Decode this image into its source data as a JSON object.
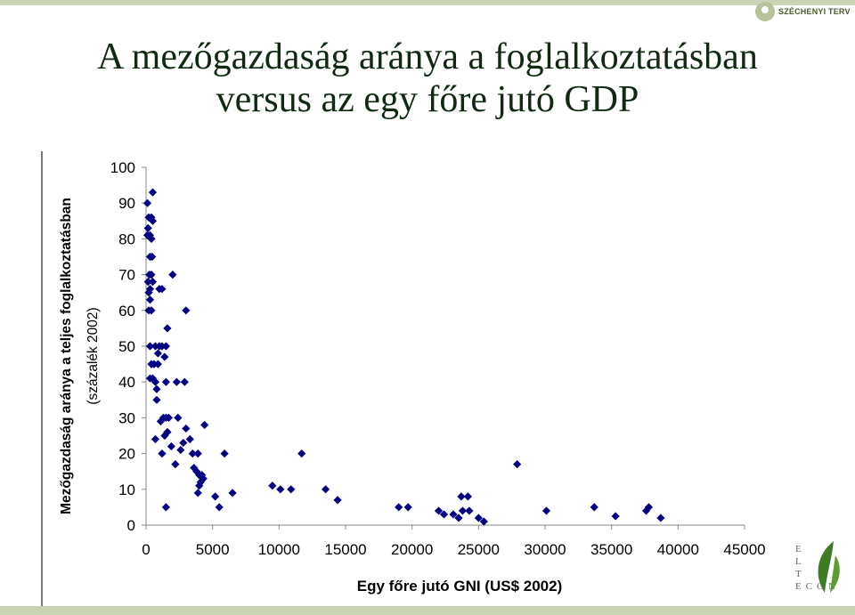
{
  "header": {
    "logo_text": "SZÉCHENYI TERV"
  },
  "title": {
    "line1": "A mezőgazdaság aránya a foglalkoztatásban",
    "line2": "versus az egy főre jutó GDP"
  },
  "footer": {
    "elte_letters": [
      "E",
      "L",
      "T"
    ],
    "econ": "ECON"
  },
  "colors": {
    "marker": "#000080",
    "title": "#0f2a10",
    "band": "#c9d3b5"
  },
  "chart_data": {
    "type": "scatter",
    "title": "",
    "xlabel": "Egy főre jutó GNI (US$ 2002)",
    "ylabel": [
      "Mezőgazdaság aránya a teljes foglalkoztatásban",
      "(százalék 2002)"
    ],
    "xlim": [
      0,
      45000
    ],
    "ylim": [
      0,
      100
    ],
    "xticks": [
      0,
      5000,
      10000,
      15000,
      20000,
      25000,
      30000,
      35000,
      40000,
      45000
    ],
    "yticks": [
      0,
      10,
      20,
      30,
      40,
      50,
      60,
      70,
      80,
      90,
      100
    ],
    "marker": "diamond",
    "grid": false,
    "points": [
      [
        500,
        93
      ],
      [
        100,
        90
      ],
      [
        200,
        86
      ],
      [
        400,
        86
      ],
      [
        500,
        85
      ],
      [
        150,
        83
      ],
      [
        100,
        81
      ],
      [
        300,
        81
      ],
      [
        400,
        80
      ],
      [
        300,
        75
      ],
      [
        450,
        75
      ],
      [
        250,
        70
      ],
      [
        400,
        70
      ],
      [
        2000,
        70
      ],
      [
        150,
        68
      ],
      [
        500,
        68
      ],
      [
        300,
        66
      ],
      [
        200,
        65
      ],
      [
        1000,
        66
      ],
      [
        1200,
        66
      ],
      [
        300,
        63
      ],
      [
        200,
        60
      ],
      [
        400,
        60
      ],
      [
        3000,
        60
      ],
      [
        1600,
        55
      ],
      [
        300,
        50
      ],
      [
        700,
        50
      ],
      [
        1000,
        50
      ],
      [
        1200,
        50
      ],
      [
        1500,
        50
      ],
      [
        900,
        48
      ],
      [
        1400,
        47
      ],
      [
        400,
        45
      ],
      [
        600,
        45
      ],
      [
        900,
        45
      ],
      [
        300,
        41
      ],
      [
        500,
        41
      ],
      [
        700,
        40
      ],
      [
        1500,
        40
      ],
      [
        2300,
        40
      ],
      [
        2900,
        40
      ],
      [
        800,
        38
      ],
      [
        800,
        35
      ],
      [
        1300,
        30
      ],
      [
        1500,
        30
      ],
      [
        1700,
        30
      ],
      [
        2400,
        30
      ],
      [
        1100,
        29
      ],
      [
        4400,
        28
      ],
      [
        3000,
        27
      ],
      [
        1600,
        26
      ],
      [
        1400,
        25
      ],
      [
        700,
        24
      ],
      [
        3300,
        24
      ],
      [
        2800,
        23
      ],
      [
        1900,
        22
      ],
      [
        2600,
        21
      ],
      [
        1200,
        20
      ],
      [
        3500,
        20
      ],
      [
        3900,
        20
      ],
      [
        5900,
        20
      ],
      [
        3600,
        16
      ],
      [
        3800,
        15
      ],
      [
        4000,
        14
      ],
      [
        4200,
        14
      ],
      [
        4300,
        13
      ],
      [
        2200,
        17
      ],
      [
        4100,
        12
      ],
      [
        4000,
        11
      ],
      [
        3900,
        9
      ],
      [
        5200,
        8
      ],
      [
        1500,
        5
      ],
      [
        5500,
        5
      ],
      [
        6500,
        9
      ],
      [
        9500,
        11
      ],
      [
        10100,
        10
      ],
      [
        10900,
        10
      ],
      [
        13500,
        10
      ],
      [
        14400,
        7
      ],
      [
        11700,
        20
      ],
      [
        19000,
        5
      ],
      [
        19700,
        5
      ],
      [
        22000,
        4
      ],
      [
        22400,
        3
      ],
      [
        23100,
        3
      ],
      [
        23500,
        2
      ],
      [
        23700,
        8
      ],
      [
        24200,
        8
      ],
      [
        23800,
        4
      ],
      [
        24300,
        4
      ],
      [
        25000,
        2
      ],
      [
        25400,
        1
      ],
      [
        27900,
        17
      ],
      [
        30100,
        4
      ],
      [
        33700,
        5
      ],
      [
        35300,
        2.5
      ],
      [
        37600,
        4
      ],
      [
        37800,
        5
      ],
      [
        38700,
        2
      ]
    ]
  }
}
